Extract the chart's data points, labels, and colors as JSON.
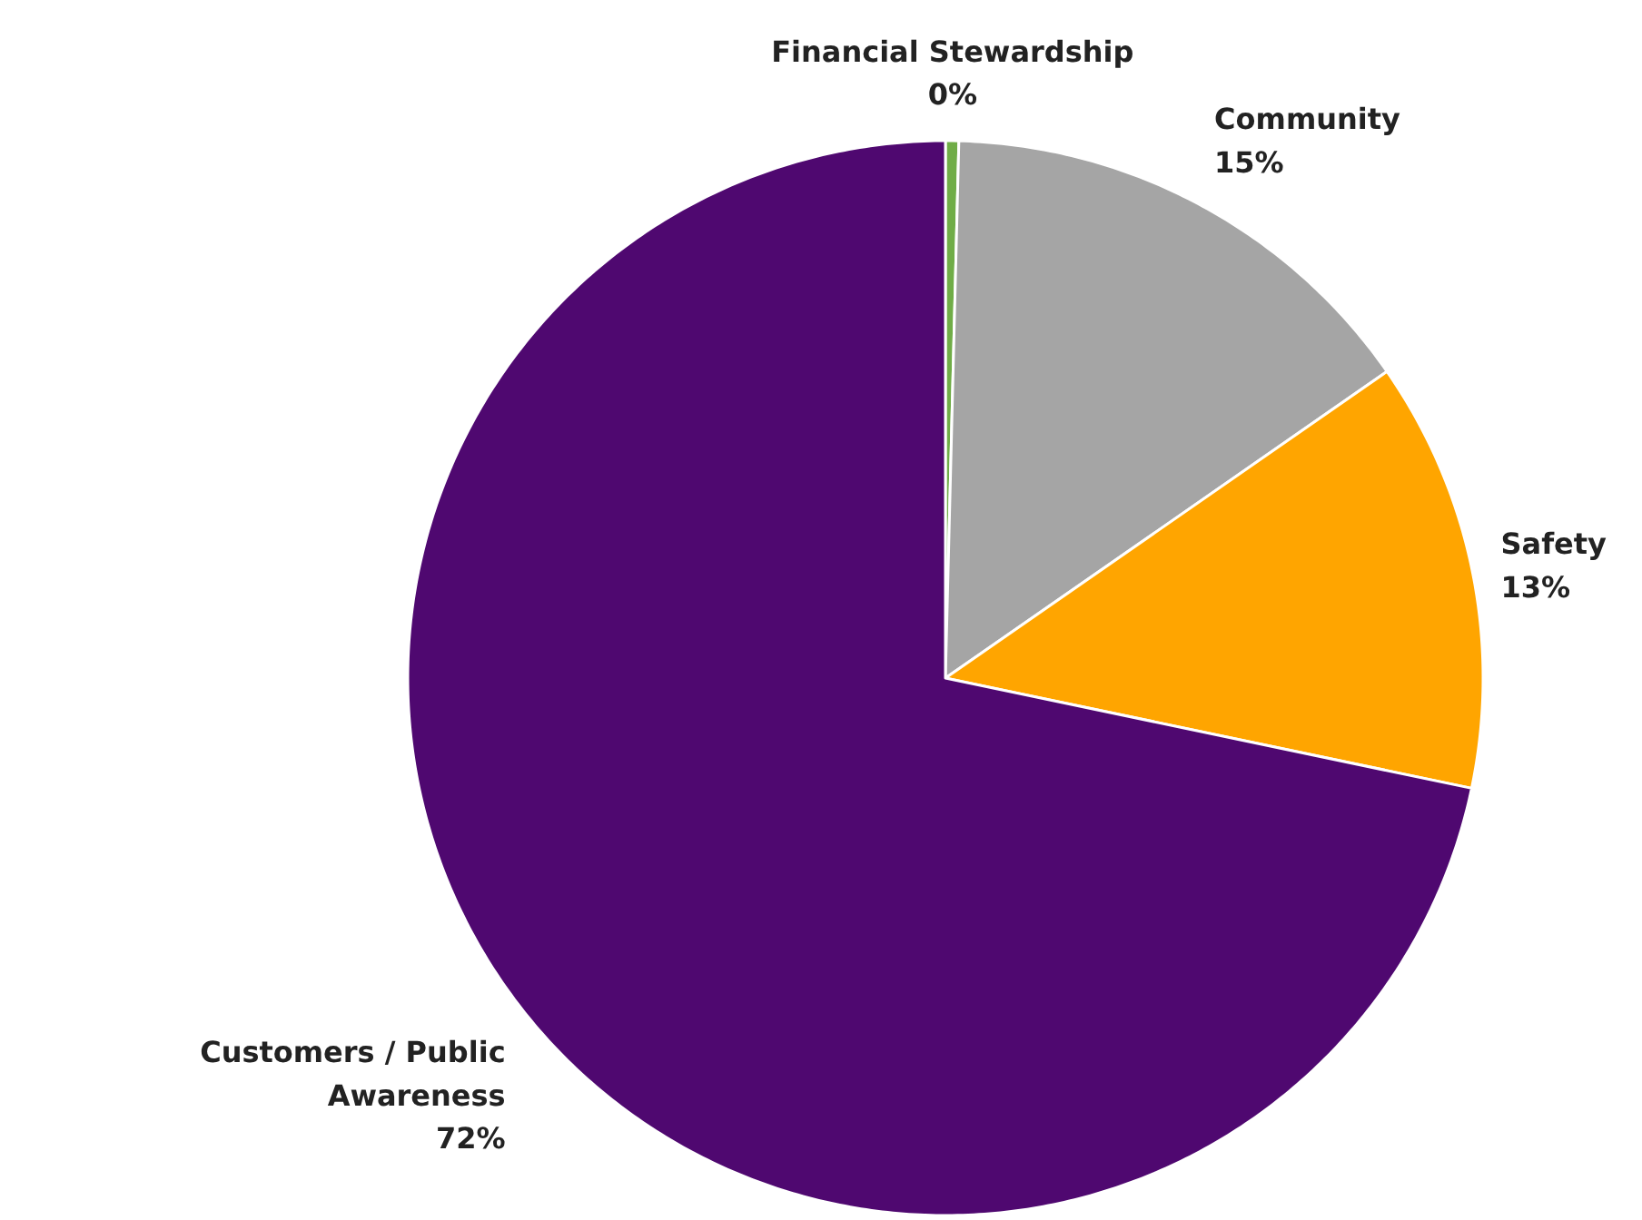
{
  "chart_data": {
    "type": "pie",
    "categories": [
      "Financial Stewardship",
      "Community",
      "Safety",
      "Customers / Public Awareness"
    ],
    "values": [
      0.4,
      15,
      13,
      72
    ],
    "value_labels": [
      "0%",
      "15%",
      "13%",
      "72%"
    ],
    "colors": [
      "#70ad47",
      "#a5a5a5",
      "#ffa500",
      "#4f0870"
    ]
  }
}
